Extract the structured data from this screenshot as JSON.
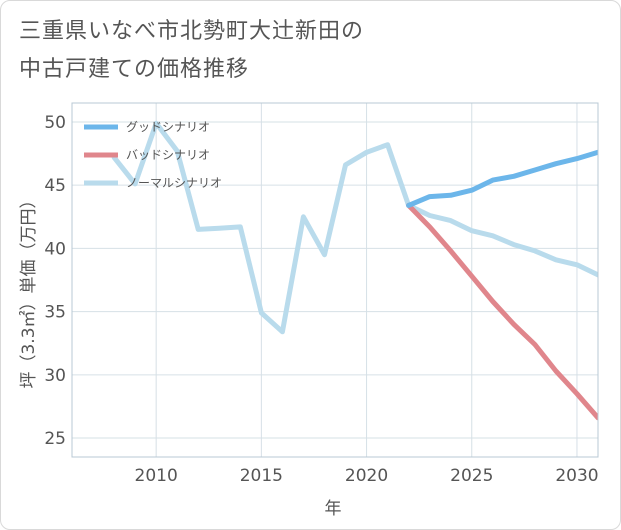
{
  "title_line1": "三重県いなべ市北勢町大辻新田の",
  "title_line2": "中古戸建ての価格推移",
  "chart_data": {
    "type": "line",
    "xlabel": "年",
    "ylabel": "坪（3.3㎡）単価（万円）",
    "xlim": [
      2006,
      2031
    ],
    "ylim": [
      23.5,
      51.5
    ],
    "xticks": [
      2010,
      2015,
      2020,
      2025,
      2030
    ],
    "yticks": [
      25,
      30,
      35,
      40,
      45,
      50
    ],
    "grid": true,
    "legend_position": "top-left",
    "series": [
      {
        "name": "グッドシナリオ",
        "color": "#6cb6ea",
        "x": [
          2022,
          2023,
          2024,
          2025,
          2026,
          2027,
          2028,
          2029,
          2030,
          2031
        ],
        "y": [
          43.4,
          44.1,
          44.2,
          44.6,
          45.4,
          45.7,
          46.2,
          46.7,
          47.1,
          47.6
        ]
      },
      {
        "name": "バッドシナリオ",
        "color": "#e0868c",
        "x": [
          2022,
          2023,
          2024,
          2025,
          2026,
          2027,
          2028,
          2029,
          2030,
          2031
        ],
        "y": [
          43.4,
          41.7,
          39.8,
          37.8,
          35.8,
          34.0,
          32.4,
          30.3,
          28.5,
          26.6
        ]
      },
      {
        "name": "ノーマルシナリオ",
        "color": "#b9dbec",
        "x": [
          2008,
          2009,
          2010,
          2011,
          2012,
          2013,
          2014,
          2015,
          2016,
          2017,
          2018,
          2019,
          2020,
          2021,
          2022,
          2023,
          2024,
          2025,
          2026,
          2027,
          2028,
          2029,
          2030,
          2031
        ],
        "y": [
          47.2,
          45.1,
          49.9,
          47.7,
          41.5,
          41.6,
          41.7,
          34.9,
          33.4,
          42.5,
          39.5,
          46.6,
          47.6,
          48.2,
          43.4,
          42.6,
          42.2,
          41.4,
          41.0,
          40.3,
          39.8,
          39.1,
          38.7,
          37.9
        ]
      }
    ]
  }
}
